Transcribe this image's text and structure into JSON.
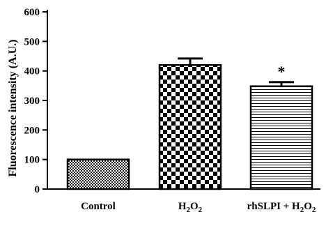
{
  "chart_data": {
    "type": "bar",
    "title": "",
    "xlabel": "",
    "ylabel": "Fluorescence intensity (A.U.)",
    "ylim": [
      0,
      600
    ],
    "yticks": [
      0,
      100,
      200,
      300,
      400,
      500,
      600
    ],
    "categories": [
      {
        "base": "Control"
      },
      {
        "base": "H",
        "sub1": "2",
        "mid": "O",
        "sub2": "2"
      },
      {
        "base": "rhSLPI + H",
        "sub1": "2",
        "mid": "O",
        "sub2": "2"
      }
    ],
    "values": [
      100,
      420,
      348
    ],
    "errors": [
      0,
      22,
      14
    ],
    "fill_patterns": [
      "fine-checker",
      "coarse-checker",
      "horizontal-lines"
    ],
    "annotations": [
      {
        "category_index": 2,
        "text": "*"
      }
    ],
    "grid": false,
    "legend": "none"
  }
}
